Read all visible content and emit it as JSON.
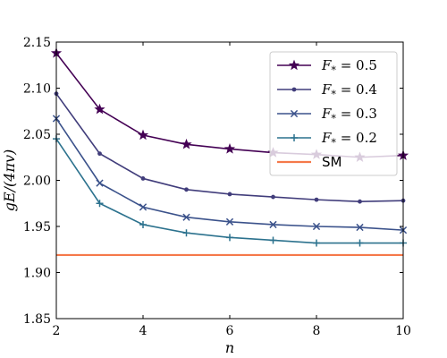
{
  "chart_data": {
    "type": "line",
    "title": "",
    "xlabel": "n",
    "ylabel": "gE/(4πv)",
    "xlim": [
      2,
      10
    ],
    "ylim": [
      1.85,
      2.15
    ],
    "xticks": [
      2,
      4,
      6,
      8,
      10
    ],
    "yticks": [
      1.85,
      1.9,
      1.95,
      2.0,
      2.05,
      2.1,
      2.15
    ],
    "xtick_labels": [
      "2",
      "4",
      "6",
      "8",
      "10"
    ],
    "ytick_labels": [
      "1.85",
      "1.90",
      "1.95",
      "2.00",
      "2.05",
      "2.10",
      "2.15"
    ],
    "grid": false,
    "legend_position": "top-right",
    "x": [
      2,
      3,
      4,
      5,
      6,
      7,
      8,
      9,
      10
    ],
    "series": [
      {
        "name": "F* = 0.5",
        "name_var": "F",
        "name_sub": "*",
        "name_rest": " = 0.5",
        "color": "#440154",
        "marker": "star",
        "values": [
          2.138,
          2.077,
          2.049,
          2.039,
          2.034,
          2.03,
          2.028,
          2.025,
          2.027
        ]
      },
      {
        "name": "F* = 0.4",
        "name_var": "F",
        "name_sub": "*",
        "name_rest": " = 0.4",
        "color": "#413d7b",
        "marker": "dot",
        "values": [
          2.094,
          2.029,
          2.002,
          1.99,
          1.985,
          1.982,
          1.979,
          1.977,
          1.978
        ]
      },
      {
        "name": "F* = 0.3",
        "name_var": "F",
        "name_sub": "*",
        "name_rest": " = 0.3",
        "color": "#3b528b",
        "marker": "x",
        "values": [
          2.067,
          1.997,
          1.971,
          1.96,
          1.955,
          1.952,
          1.95,
          1.949,
          1.946
        ]
      },
      {
        "name": "F* = 0.2",
        "name_var": "F",
        "name_sub": "*",
        "name_rest": " = 0.2",
        "color": "#2c728e",
        "marker": "plus",
        "values": [
          2.045,
          1.975,
          1.952,
          1.943,
          1.938,
          1.935,
          1.932,
          1.932,
          1.932
        ]
      },
      {
        "name": "SM",
        "color": "#f5794a",
        "marker": "none",
        "values": [
          1.919,
          1.919,
          1.919,
          1.919,
          1.919,
          1.919,
          1.919,
          1.919,
          1.919
        ]
      }
    ]
  }
}
